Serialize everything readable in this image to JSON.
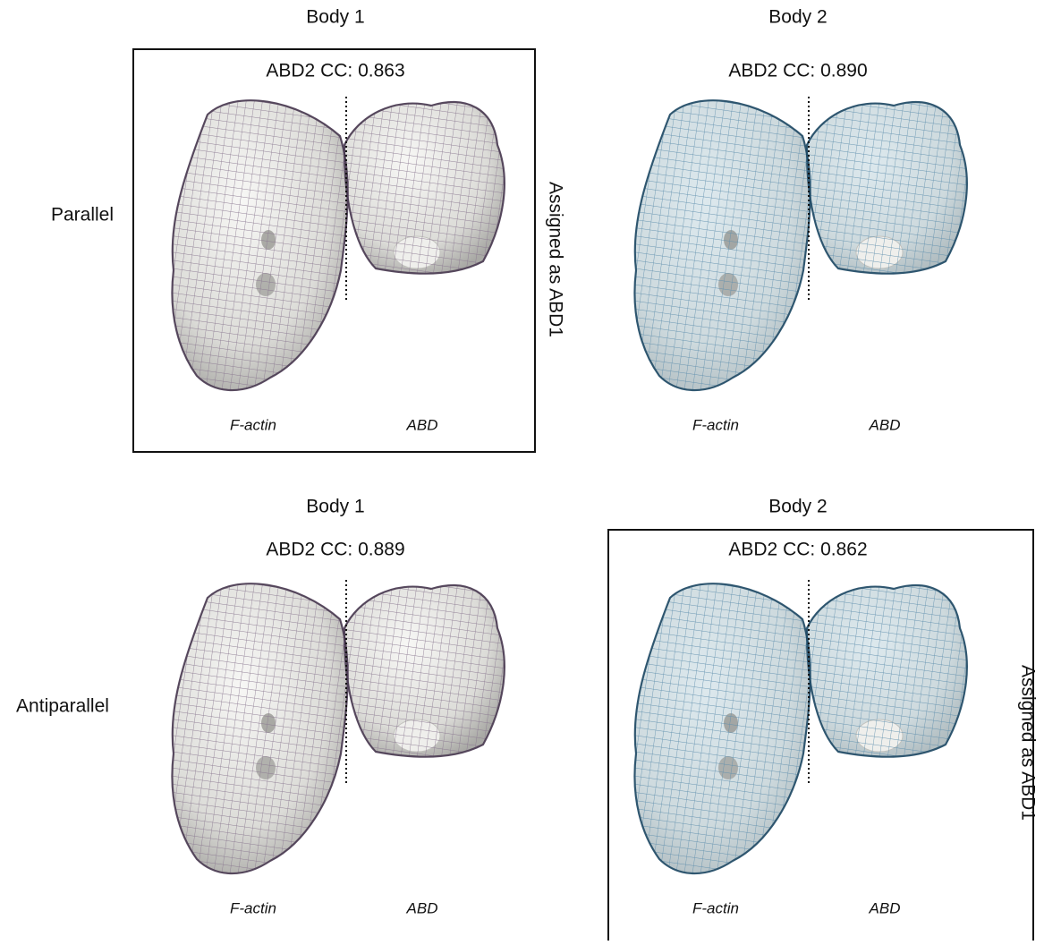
{
  "rows": [
    {
      "label": "Parallel",
      "assigned": "Assigned as ABD1",
      "panels": [
        {
          "title": "Body 1",
          "cc": "ABD2 CC: 0.863",
          "left": "F-actin",
          "right": "ABD"
        },
        {
          "title": "Body 2",
          "cc": "ABD2 CC: 0.890",
          "left": "F-actin",
          "right": "ABD"
        }
      ]
    },
    {
      "label": "Antiparallel",
      "assigned": "Assigned as ABD1",
      "panels": [
        {
          "title": "Body 1",
          "cc": "ABD2 CC: 0.889",
          "left": "F-actin",
          "right": "ABD"
        },
        {
          "title": "Body 2",
          "cc": "ABD2 CC: 0.862",
          "left": "F-actin",
          "right": "ABD"
        }
      ]
    }
  ]
}
